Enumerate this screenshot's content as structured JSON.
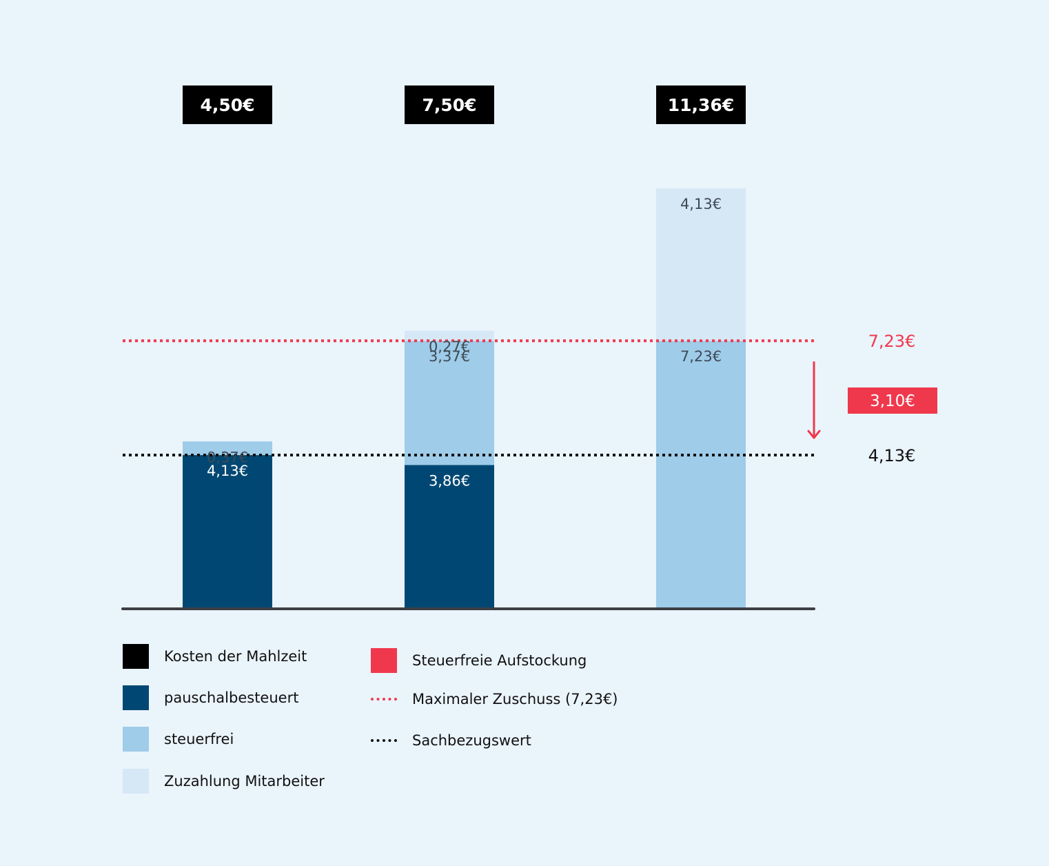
{
  "chart_data": {
    "type": "bar",
    "stacked": true,
    "categories": [
      "4,50€",
      "7,50€",
      "11,36€"
    ],
    "totals": [
      {
        "value": 4.5,
        "label": "4,50€"
      },
      {
        "value": 7.5,
        "label": "7,50€"
      },
      {
        "value": 11.36,
        "label": "11,36€"
      }
    ],
    "series": [
      {
        "name": "pauschalbesteuert",
        "color": "#004873",
        "values": [
          4.13,
          3.86,
          0
        ],
        "labels": [
          "4,13€",
          "3,86€",
          ""
        ]
      },
      {
        "name": "steuerfrei",
        "color": "#9ecce9",
        "values": [
          0.37,
          3.37,
          7.23
        ],
        "labels": [
          "0,37€",
          "3,37€",
          "7,23€"
        ]
      },
      {
        "name": "Zuzahlung Mitarbeiter",
        "color": "#d6e8f6",
        "values": [
          0,
          0.27,
          4.13
        ],
        "labels": [
          "",
          "0,27€",
          "4,13€"
        ]
      }
    ],
    "reference_lines": [
      {
        "name": "Maximaler Zuschuss",
        "value": 7.23,
        "label": "7,23€",
        "color": "#f0384d",
        "style": "dotted"
      },
      {
        "name": "Sachbezugswert",
        "value": 4.13,
        "label": "4,13€",
        "color": "#111111",
        "style": "dotted"
      }
    ],
    "difference": {
      "from": 7.23,
      "to": 4.13,
      "label": "3,10€",
      "color": "#f0384d"
    },
    "ylim": [
      0,
      11.36
    ],
    "title": "",
    "xlabel": "",
    "ylabel": ""
  },
  "legend": {
    "meal_cost": {
      "label": "Kosten der Mahlzeit",
      "color": "#000000"
    },
    "flat_taxed": {
      "label": "pauschalbesteuert",
      "color": "#004873"
    },
    "tax_free": {
      "label": "steuerfrei",
      "color": "#9ecce9"
    },
    "employee_copay": {
      "label": "Zuzahlung Mitarbeiter",
      "color": "#d6e8f6"
    },
    "tax_free_topup": {
      "label": "Steuerfreie Aufstockung",
      "color": "#f0384d"
    },
    "max_subsidy": {
      "label": "Maximaler Zuschuss (7,23€)",
      "color": "#f0384d"
    },
    "benefit_value": {
      "label": "Sachbezugswert",
      "color": "#111111"
    }
  }
}
